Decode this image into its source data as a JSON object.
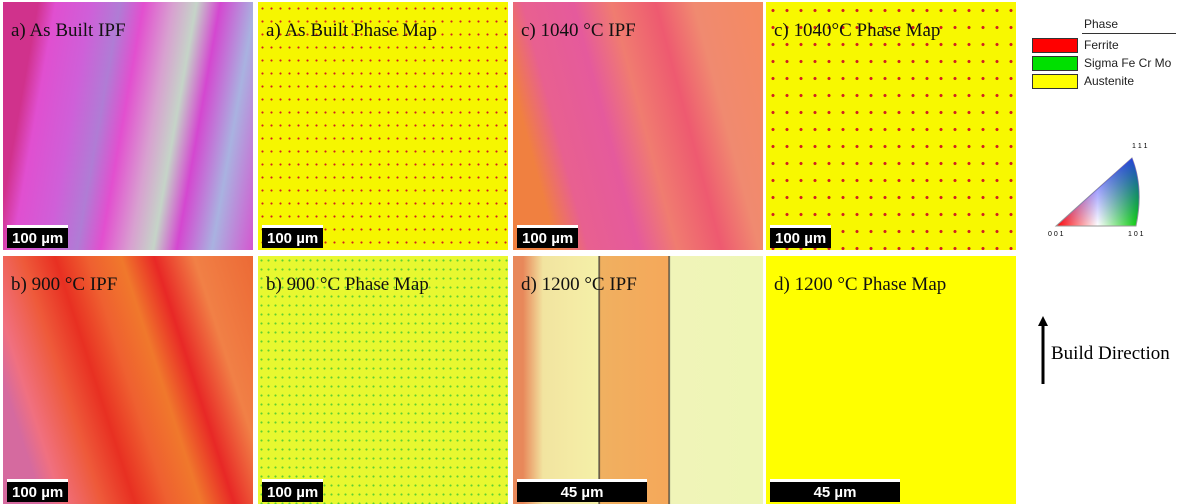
{
  "panels": [
    {
      "label": "a) As Built IPF",
      "scale": "100 µm"
    },
    {
      "label": "a) As Built Phase Map",
      "scale": "100 µm"
    },
    {
      "label": "c) 1040 °C IPF",
      "scale": "100 µm"
    },
    {
      "label": "c) 1040°C Phase Map",
      "scale": "100 µm"
    },
    {
      "label": "b) 900 °C IPF",
      "scale": "100 µm"
    },
    {
      "label": "b) 900 °C Phase Map",
      "scale": "100 µm"
    },
    {
      "label": "d) 1200 °C IPF",
      "scale": "45 µm"
    },
    {
      "label": "d) 1200 °C Phase Map",
      "scale": "45 µm"
    }
  ],
  "legend": {
    "title": "Phase",
    "items": [
      {
        "name": "Ferrite",
        "color": "#ff0000"
      },
      {
        "name": "Sigma Fe Cr Mo",
        "color": "#00e000"
      },
      {
        "name": "Austenite",
        "color": "#ffff00"
      }
    ]
  },
  "ipf": {
    "top": "1 1 1",
    "left": "0 0 1",
    "right": "1 0 1"
  },
  "build_direction": "Build Direction"
}
